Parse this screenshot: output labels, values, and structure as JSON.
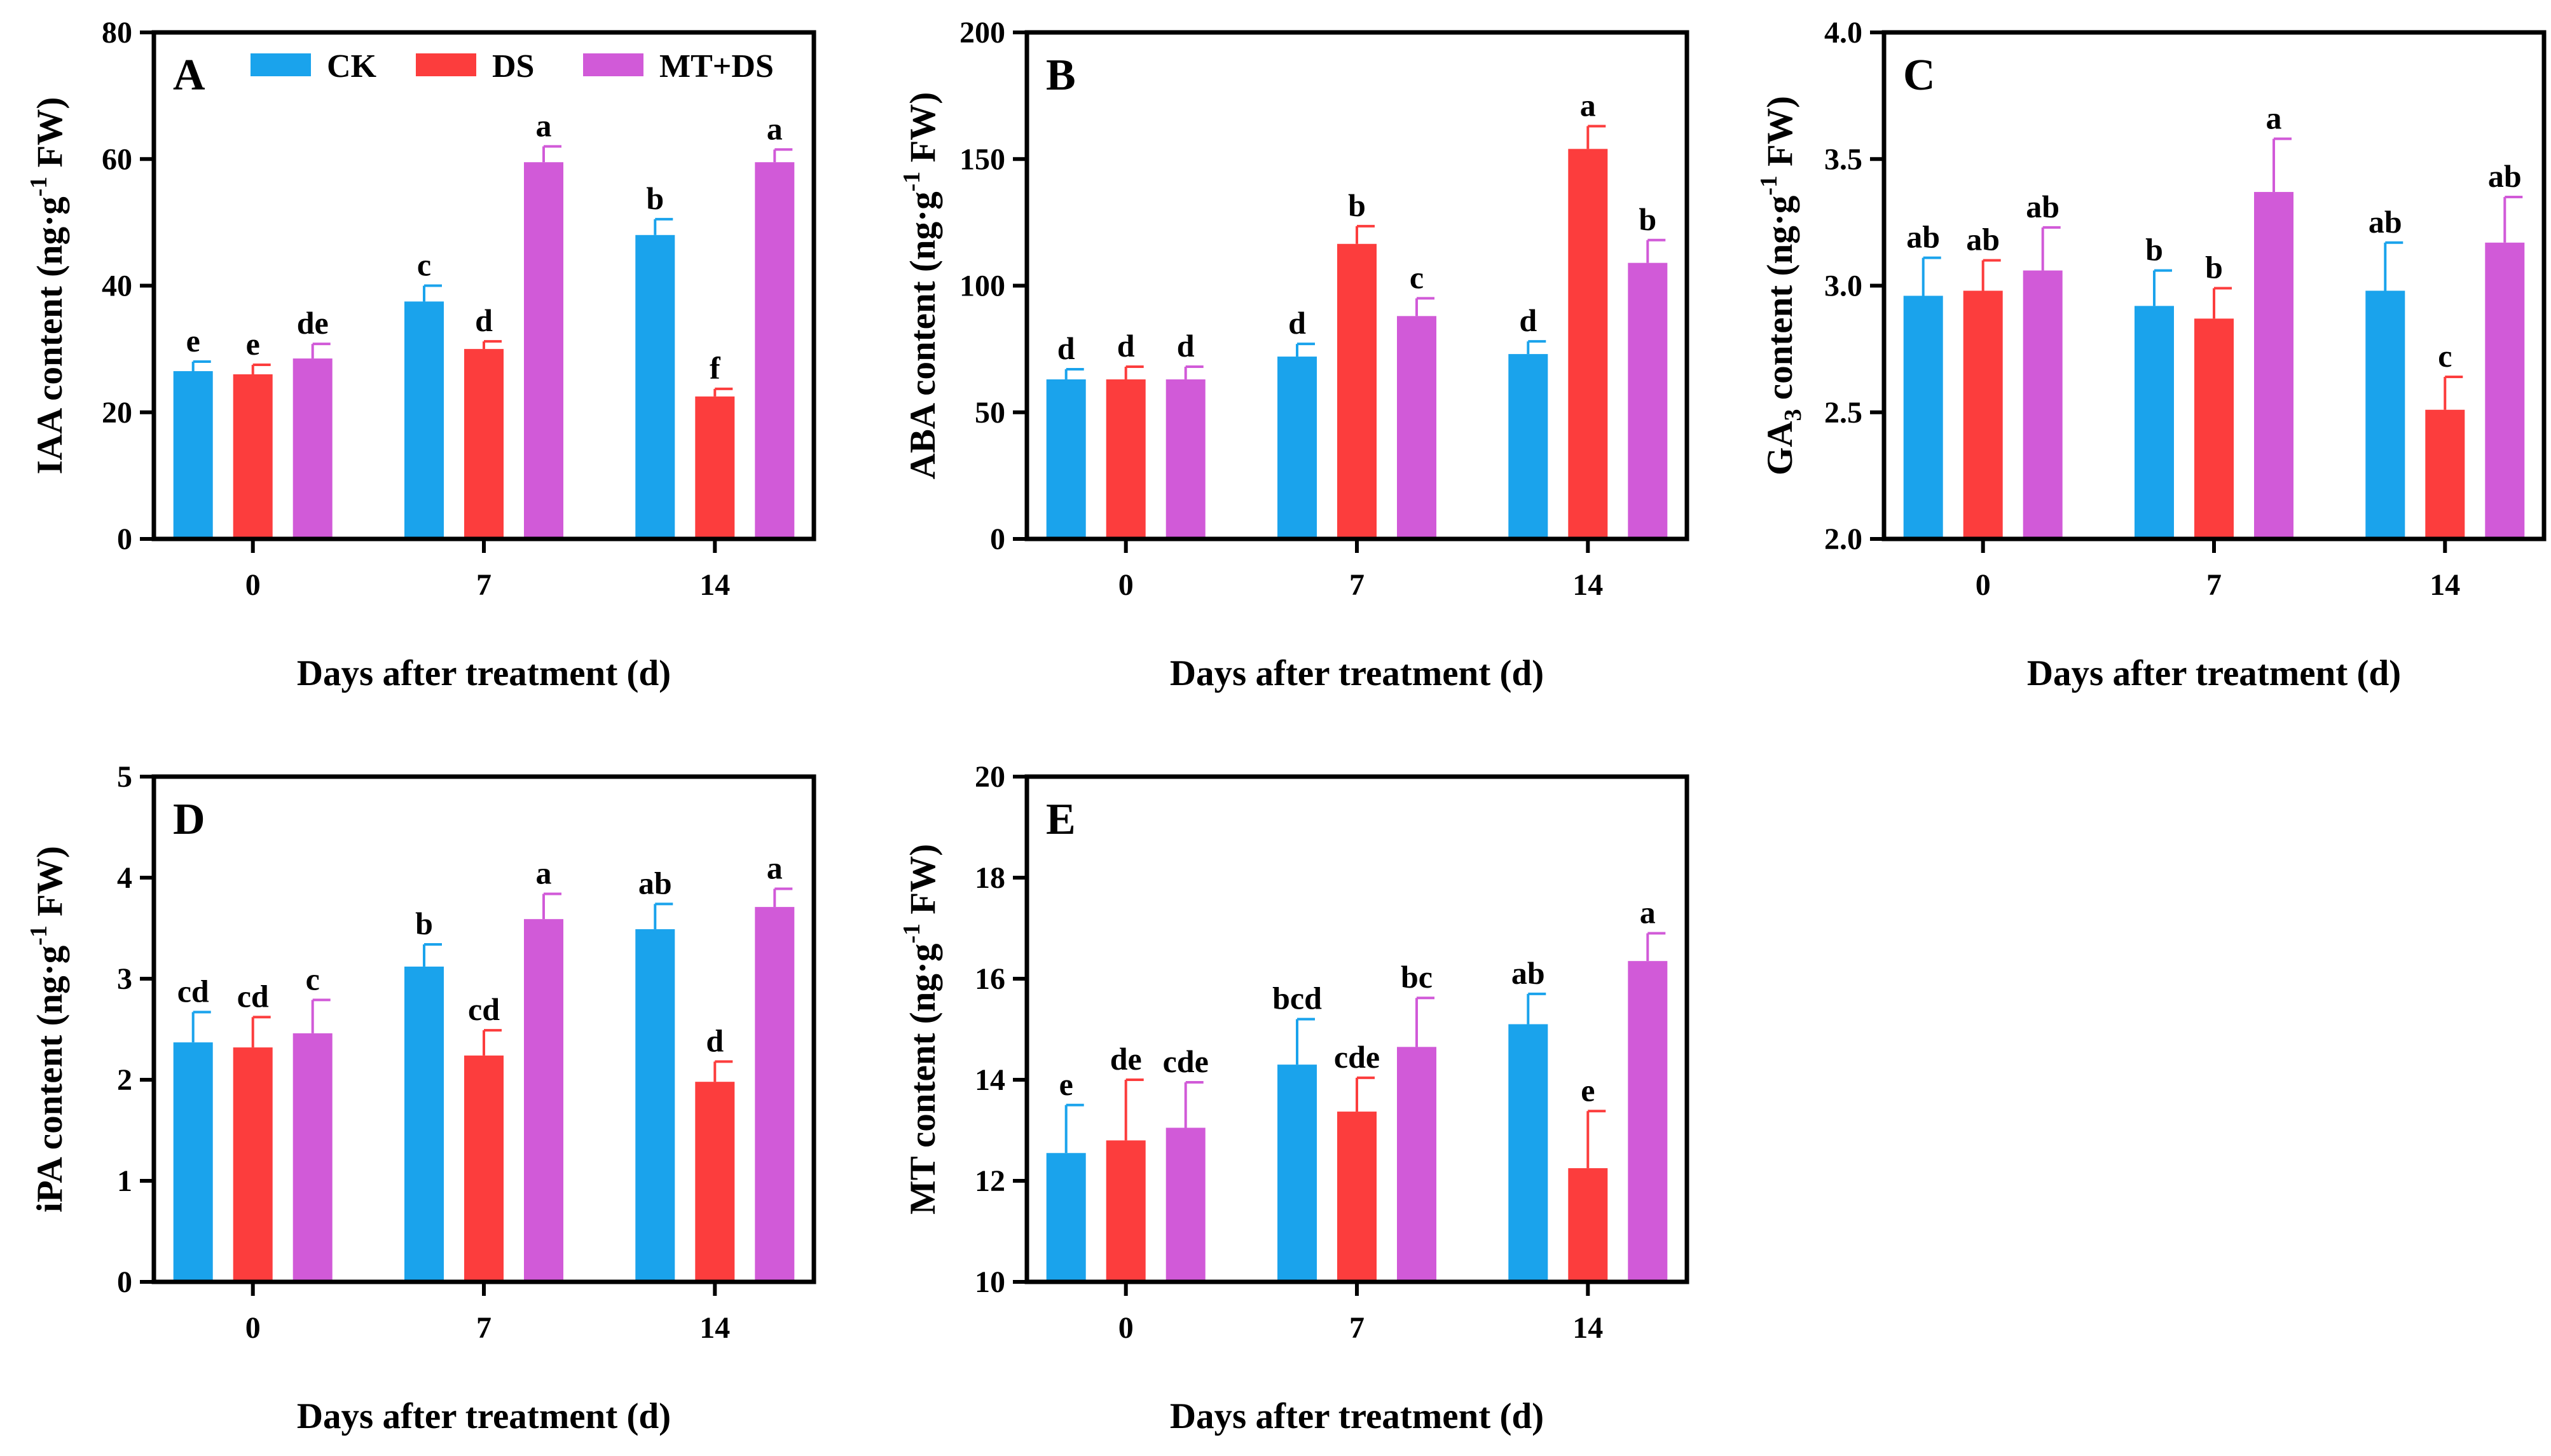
{
  "colors": {
    "CK": "#1aa3ec",
    "DS": "#fc3d3d",
    "MT+DS": "#d15ad8"
  },
  "legend": [
    "CK",
    "DS",
    "MT+DS"
  ],
  "chart_data": [
    {
      "panel": "A",
      "type": "bar",
      "title": "",
      "xlabel": "Days after treatment (d)",
      "ylabel_main": "IAA content (ng·g",
      "ylabel_sup": "-1",
      "ylabel_tail": " FW)",
      "ylabel_sub": "",
      "categories": [
        "0",
        "7",
        "14"
      ],
      "ylim": [
        0,
        80
      ],
      "yticks": [
        0,
        20,
        40,
        60,
        80
      ],
      "ytick_labels": [
        "0",
        "20",
        "40",
        "60",
        "80"
      ],
      "legend": true,
      "series": [
        {
          "name": "CK",
          "values": [
            26.5,
            37.5,
            48
          ],
          "errors": [
            1.5,
            2.5,
            2.5
          ],
          "letters": [
            "e",
            "c",
            "b"
          ]
        },
        {
          "name": "DS",
          "values": [
            26,
            30,
            22.5
          ],
          "errors": [
            1.5,
            1.2,
            1.2
          ],
          "letters": [
            "e",
            "d",
            "f"
          ]
        },
        {
          "name": "MT+DS",
          "values": [
            28.5,
            59.5,
            59.5
          ],
          "errors": [
            2.3,
            2.5,
            2.0
          ],
          "letters": [
            "de",
            "a",
            "a"
          ]
        }
      ]
    },
    {
      "panel": "B",
      "type": "bar",
      "title": "",
      "xlabel": "Days after treatment (d)",
      "ylabel_main": "ABA content (ng·g",
      "ylabel_sup": "-1",
      "ylabel_tail": " FW)",
      "ylabel_sub": "",
      "categories": [
        "0",
        "7",
        "14"
      ],
      "ylim": [
        0,
        200
      ],
      "yticks": [
        0,
        50,
        100,
        150,
        200
      ],
      "ytick_labels": [
        "0",
        "50",
        "100",
        "150",
        "200"
      ],
      "legend": false,
      "series": [
        {
          "name": "CK",
          "values": [
            63,
            72,
            73
          ],
          "errors": [
            4,
            5,
            5
          ],
          "letters": [
            "d",
            "d",
            "d"
          ]
        },
        {
          "name": "DS",
          "values": [
            63,
            116.5,
            154
          ],
          "errors": [
            5,
            7,
            9
          ],
          "letters": [
            "d",
            "b",
            "a"
          ]
        },
        {
          "name": "MT+DS",
          "values": [
            63,
            88,
            109
          ],
          "errors": [
            5,
            7,
            9
          ],
          "letters": [
            "d",
            "c",
            "b"
          ]
        }
      ]
    },
    {
      "panel": "C",
      "type": "bar",
      "title": "",
      "xlabel": "Days after treatment (d)",
      "ylabel_main": "GA",
      "ylabel_sup": "",
      "ylabel_tail": " content (ng·g",
      "ylabel_sub": "3",
      "ylabel_sup2": "-1",
      "ylabel_tail2": " FW)",
      "categories": [
        "0",
        "7",
        "14"
      ],
      "ylim": [
        2.0,
        4.0
      ],
      "yticks": [
        2.0,
        2.5,
        3.0,
        3.5,
        4.0
      ],
      "ytick_labels": [
        "2.0",
        "2.5",
        "3.0",
        "3.5",
        "4.0"
      ],
      "legend": false,
      "series": [
        {
          "name": "CK",
          "values": [
            2.96,
            2.92,
            2.98
          ],
          "errors": [
            0.15,
            0.14,
            0.19
          ],
          "letters": [
            "ab",
            "b",
            "ab"
          ]
        },
        {
          "name": "DS",
          "values": [
            2.98,
            2.87,
            2.51
          ],
          "errors": [
            0.12,
            0.12,
            0.13
          ],
          "letters": [
            "ab",
            "b",
            "c"
          ]
        },
        {
          "name": "MT+DS",
          "values": [
            3.06,
            3.37,
            3.17
          ],
          "errors": [
            0.17,
            0.21,
            0.18
          ],
          "letters": [
            "ab",
            "a",
            "ab"
          ]
        }
      ]
    },
    {
      "panel": "D",
      "type": "bar",
      "title": "",
      "xlabel": "Days after treatment (d)",
      "ylabel_main": "iPA content (ng·g",
      "ylabel_sup": "-1",
      "ylabel_tail": " FW)",
      "ylabel_sub": "",
      "categories": [
        "0",
        "7",
        "14"
      ],
      "ylim": [
        0,
        5
      ],
      "yticks": [
        0,
        1,
        2,
        3,
        4,
        5
      ],
      "ytick_labels": [
        "0",
        "1",
        "2",
        "3",
        "4",
        "5"
      ],
      "legend": false,
      "series": [
        {
          "name": "CK",
          "values": [
            2.37,
            3.12,
            3.49
          ],
          "errors": [
            0.3,
            0.22,
            0.25
          ],
          "letters": [
            "cd",
            "b",
            "ab"
          ]
        },
        {
          "name": "DS",
          "values": [
            2.32,
            2.24,
            1.98
          ],
          "errors": [
            0.3,
            0.25,
            0.2
          ],
          "letters": [
            "cd",
            "cd",
            "d"
          ]
        },
        {
          "name": "MT+DS",
          "values": [
            2.46,
            3.59,
            3.71
          ],
          "errors": [
            0.33,
            0.25,
            0.18
          ],
          "letters": [
            "c",
            "a",
            "a"
          ]
        }
      ]
    },
    {
      "panel": "E",
      "type": "bar",
      "title": "",
      "xlabel": "Days after treatment (d)",
      "ylabel_main": "MT content (ng·g",
      "ylabel_sup": "-1",
      "ylabel_tail": " FW)",
      "ylabel_sub": "",
      "categories": [
        "0",
        "7",
        "14"
      ],
      "ylim": [
        10,
        20
      ],
      "yticks": [
        10,
        12,
        14,
        16,
        18,
        20
      ],
      "ytick_labels": [
        "10",
        "12",
        "14",
        "16",
        "18",
        "20"
      ],
      "legend": false,
      "series": [
        {
          "name": "CK",
          "values": [
            12.55,
            14.3,
            15.1
          ],
          "errors": [
            0.95,
            0.9,
            0.6
          ],
          "letters": [
            "e",
            "bcd",
            "ab"
          ]
        },
        {
          "name": "DS",
          "values": [
            12.8,
            13.37,
            12.25
          ],
          "errors": [
            1.2,
            0.67,
            1.13
          ],
          "letters": [
            "de",
            "cde",
            "e"
          ]
        },
        {
          "name": "MT+DS",
          "values": [
            13.05,
            14.65,
            16.35
          ],
          "errors": [
            0.9,
            0.97,
            0.55
          ],
          "letters": [
            "cde",
            "bc",
            "a"
          ]
        }
      ]
    }
  ]
}
